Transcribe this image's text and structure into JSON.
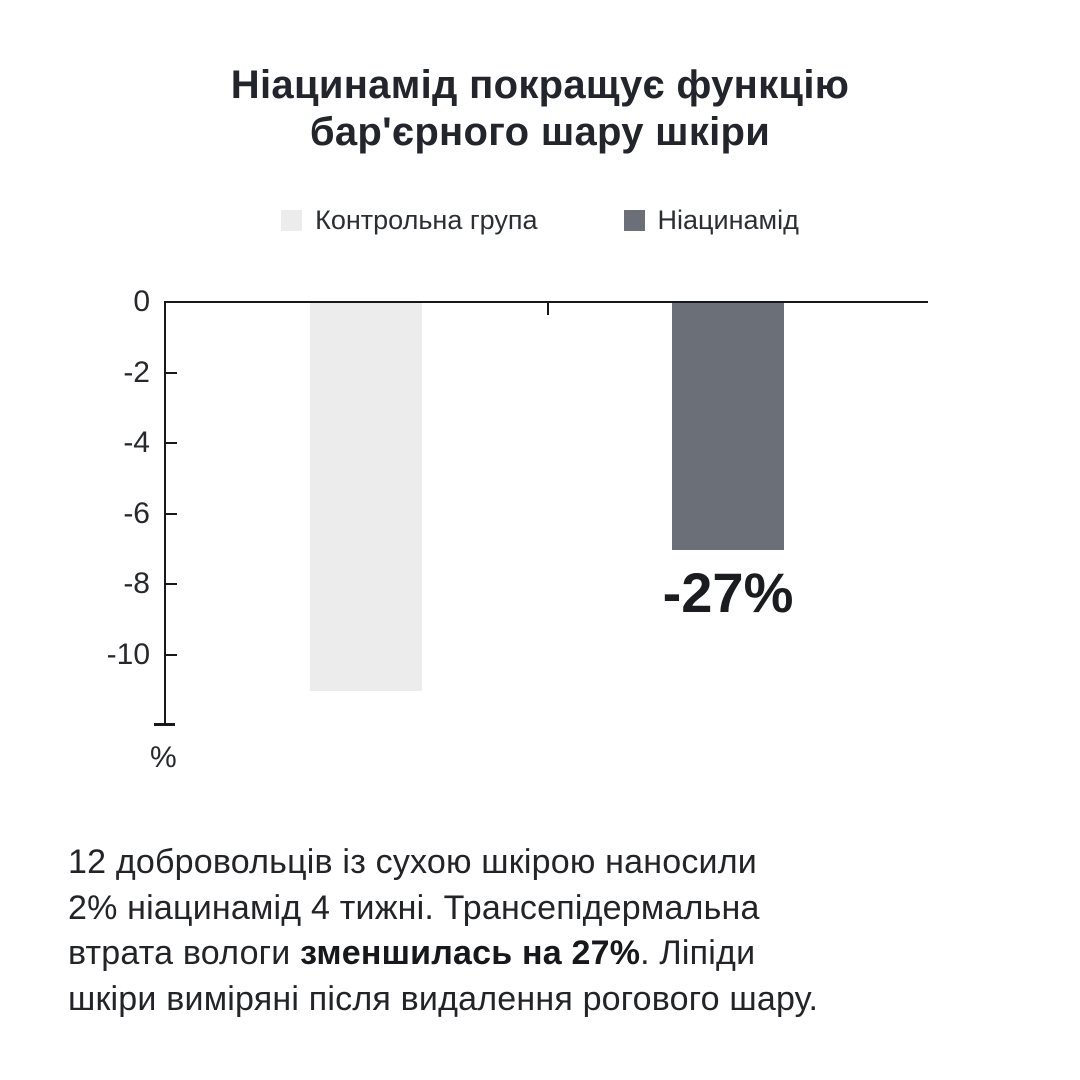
{
  "title": {
    "line1": "Ніацинамід покращує функцію",
    "line2": "бар'єрного шару шкіри"
  },
  "chart_data": {
    "type": "bar",
    "title": "Ніацинамід покращує функцію бар'єрного шару шкіри",
    "categories": [
      "Контрольна група",
      "Ніацинамід"
    ],
    "values": [
      -11,
      -7
    ],
    "bar_labels": [
      "",
      "-27%"
    ],
    "legend": [
      "Контрольна група",
      "Ніацинамід"
    ],
    "legend_position": "top",
    "colors": [
      "#ececec",
      "#6a6f78"
    ],
    "ylabel": "%",
    "ylim": [
      -12,
      0
    ],
    "yticks": [
      0,
      -2,
      -4,
      -6,
      -8,
      -10
    ],
    "grid": false
  },
  "footnote": {
    "lines": [
      {
        "text": "12 добровольців із сухою шкірою наносили"
      },
      {
        "text": "2% ніацинамід 4 тижні. Трансепідермальна"
      },
      {
        "pre": "втрата вологи ",
        "bold": "зменшилась на 27%",
        "post": ". Ліпіди"
      },
      {
        "text": "шкіри виміряні після видалення рогового шару."
      }
    ]
  },
  "colors": {
    "background": "#ffffff",
    "bar_control": "#ececec",
    "bar_niacinamide": "#6a6f78",
    "axis": "#17181b",
    "text": "#222428"
  }
}
